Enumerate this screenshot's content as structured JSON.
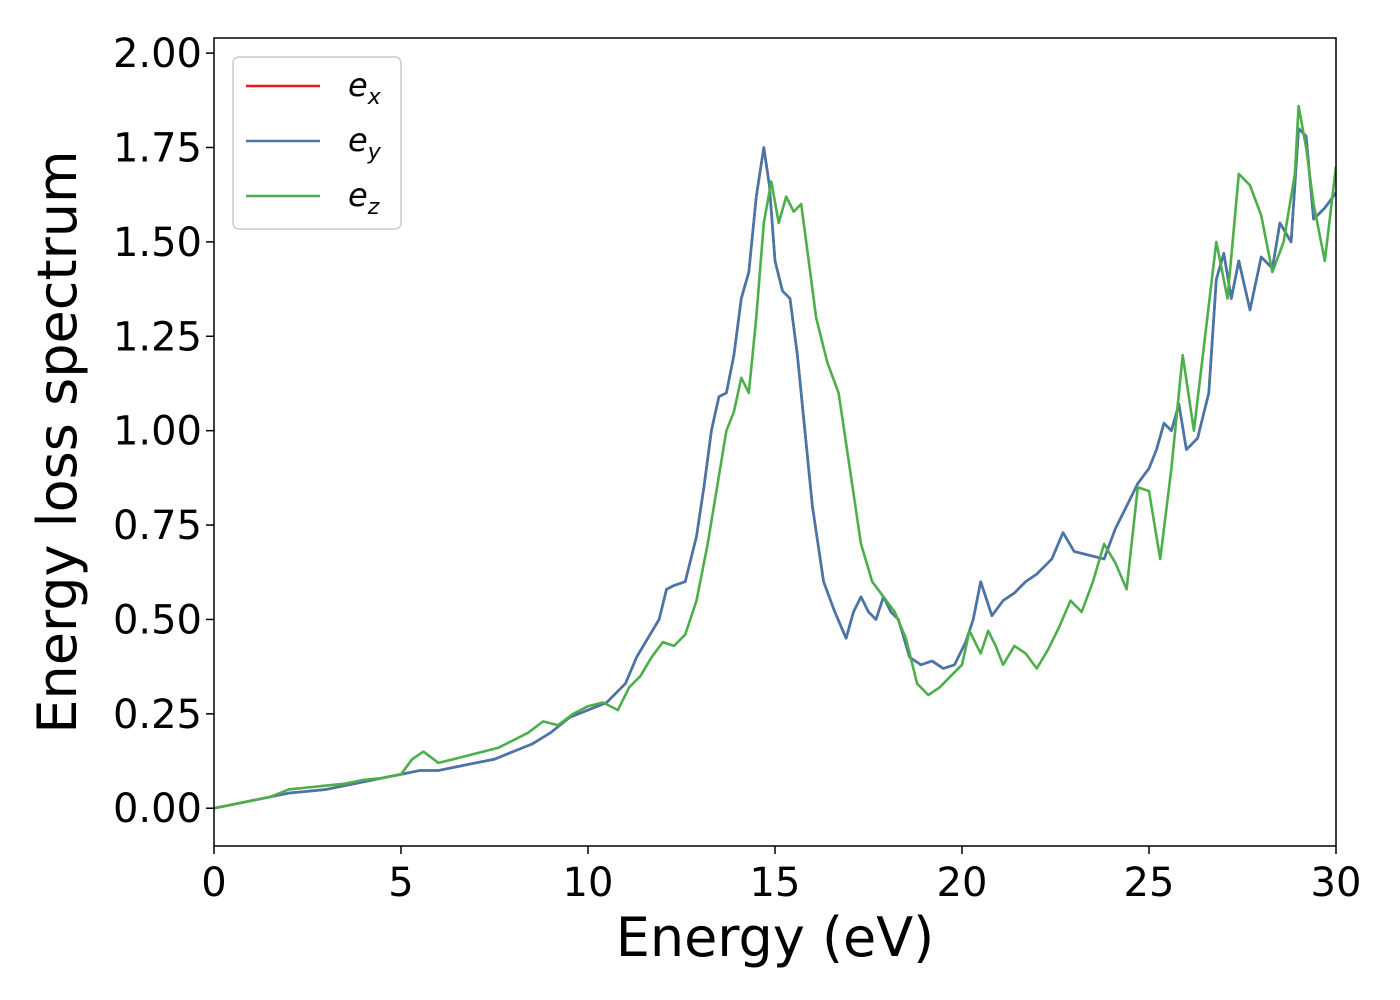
{
  "chart_data": {
    "type": "line",
    "xlabel": "Energy (eV)",
    "ylabel": "Energy loss spectrum",
    "xlim": [
      0,
      30
    ],
    "ylim": [
      -0.1,
      2.04
    ],
    "xticks": [
      "0",
      "5",
      "10",
      "15",
      "20",
      "25",
      "30"
    ],
    "yticks": [
      "0.00",
      "0.25",
      "0.50",
      "0.75",
      "1.00",
      "1.25",
      "1.50",
      "1.75",
      "2.00"
    ],
    "grid": false,
    "legend_position": "top-left",
    "series": [
      {
        "name": "e_x",
        "name_base": "e",
        "name_sub": "x",
        "color": "#e41a1c",
        "x": [
          0,
          0.5,
          1,
          1.5,
          2,
          2.5,
          3,
          3.5,
          4,
          4.5,
          5,
          5.5,
          6,
          6.5,
          7,
          7.5,
          8,
          8.5,
          9,
          9.5,
          10,
          10.5,
          11,
          11.3,
          11.6,
          11.9,
          12.1,
          12.3,
          12.6,
          12.9,
          13.1,
          13.3,
          13.5,
          13.7,
          13.9,
          14.1,
          14.3,
          14.5,
          14.7,
          14.85,
          15.0,
          15.2,
          15.4,
          15.6,
          15.8,
          16.0,
          16.3,
          16.6,
          16.9,
          17.1,
          17.3,
          17.5,
          17.7,
          17.9,
          18.1,
          18.3,
          18.6,
          18.9,
          19.2,
          19.5,
          19.8,
          20.1,
          20.3,
          20.5,
          20.8,
          21.1,
          21.4,
          21.7,
          22.0,
          22.4,
          22.7,
          23.0,
          23.4,
          23.8,
          24.1,
          24.4,
          24.7,
          25.0,
          25.2,
          25.4,
          25.6,
          25.8,
          26.0,
          26.3,
          26.6,
          26.8,
          27.0,
          27.2,
          27.4,
          27.7,
          28.0,
          28.3,
          28.5,
          28.8,
          29.0,
          29.2,
          29.4,
          29.7,
          30.0
        ],
        "values": [
          0.0,
          0.01,
          0.02,
          0.03,
          0.04,
          0.045,
          0.05,
          0.06,
          0.07,
          0.08,
          0.09,
          0.1,
          0.1,
          0.11,
          0.12,
          0.13,
          0.15,
          0.17,
          0.2,
          0.24,
          0.26,
          0.28,
          0.33,
          0.4,
          0.45,
          0.5,
          0.58,
          0.59,
          0.6,
          0.72,
          0.85,
          1.0,
          1.09,
          1.1,
          1.2,
          1.35,
          1.42,
          1.62,
          1.75,
          1.65,
          1.45,
          1.37,
          1.35,
          1.2,
          1.0,
          0.8,
          0.6,
          0.52,
          0.45,
          0.52,
          0.56,
          0.52,
          0.5,
          0.56,
          0.52,
          0.5,
          0.4,
          0.38,
          0.39,
          0.37,
          0.38,
          0.44,
          0.5,
          0.6,
          0.51,
          0.55,
          0.57,
          0.6,
          0.62,
          0.66,
          0.73,
          0.68,
          0.67,
          0.66,
          0.74,
          0.8,
          0.86,
          0.9,
          0.95,
          1.02,
          1.0,
          1.07,
          0.95,
          0.98,
          1.1,
          1.4,
          1.47,
          1.35,
          1.45,
          1.32,
          1.46,
          1.43,
          1.55,
          1.5,
          1.8,
          1.78,
          1.56,
          1.59,
          1.63
        ]
      },
      {
        "name": "e_y",
        "name_base": "e",
        "name_sub": "y",
        "color": "#4477aa",
        "x": [
          0,
          0.5,
          1,
          1.5,
          2,
          2.5,
          3,
          3.5,
          4,
          4.5,
          5,
          5.5,
          6,
          6.5,
          7,
          7.5,
          8,
          8.5,
          9,
          9.5,
          10,
          10.5,
          11,
          11.3,
          11.6,
          11.9,
          12.1,
          12.3,
          12.6,
          12.9,
          13.1,
          13.3,
          13.5,
          13.7,
          13.9,
          14.1,
          14.3,
          14.5,
          14.7,
          14.85,
          15.0,
          15.2,
          15.4,
          15.6,
          15.8,
          16.0,
          16.3,
          16.6,
          16.9,
          17.1,
          17.3,
          17.5,
          17.7,
          17.9,
          18.1,
          18.3,
          18.6,
          18.9,
          19.2,
          19.5,
          19.8,
          20.1,
          20.3,
          20.5,
          20.8,
          21.1,
          21.4,
          21.7,
          22.0,
          22.4,
          22.7,
          23.0,
          23.4,
          23.8,
          24.1,
          24.4,
          24.7,
          25.0,
          25.2,
          25.4,
          25.6,
          25.8,
          26.0,
          26.3,
          26.6,
          26.8,
          27.0,
          27.2,
          27.4,
          27.7,
          28.0,
          28.3,
          28.5,
          28.8,
          29.0,
          29.2,
          29.4,
          29.7,
          30.0
        ],
        "values": [
          0.0,
          0.01,
          0.02,
          0.03,
          0.04,
          0.045,
          0.05,
          0.06,
          0.07,
          0.08,
          0.09,
          0.1,
          0.1,
          0.11,
          0.12,
          0.13,
          0.15,
          0.17,
          0.2,
          0.24,
          0.26,
          0.28,
          0.33,
          0.4,
          0.45,
          0.5,
          0.58,
          0.59,
          0.6,
          0.72,
          0.85,
          1.0,
          1.09,
          1.1,
          1.2,
          1.35,
          1.42,
          1.62,
          1.75,
          1.65,
          1.45,
          1.37,
          1.35,
          1.2,
          1.0,
          0.8,
          0.6,
          0.52,
          0.45,
          0.52,
          0.56,
          0.52,
          0.5,
          0.56,
          0.52,
          0.5,
          0.4,
          0.38,
          0.39,
          0.37,
          0.38,
          0.44,
          0.5,
          0.6,
          0.51,
          0.55,
          0.57,
          0.6,
          0.62,
          0.66,
          0.73,
          0.68,
          0.67,
          0.66,
          0.74,
          0.8,
          0.86,
          0.9,
          0.95,
          1.02,
          1.0,
          1.07,
          0.95,
          0.98,
          1.1,
          1.4,
          1.47,
          1.35,
          1.45,
          1.32,
          1.46,
          1.43,
          1.55,
          1.5,
          1.8,
          1.78,
          1.56,
          1.59,
          1.63
        ]
      },
      {
        "name": "e_z",
        "name_base": "e",
        "name_sub": "z",
        "color": "#4daf4a",
        "x": [
          0,
          0.5,
          1,
          1.5,
          2,
          2.5,
          3,
          3.5,
          4,
          4.5,
          5,
          5.3,
          5.6,
          6.0,
          6.4,
          6.8,
          7.2,
          7.6,
          8.0,
          8.4,
          8.8,
          9.2,
          9.6,
          10.0,
          10.4,
          10.8,
          11.1,
          11.4,
          11.7,
          12.0,
          12.3,
          12.6,
          12.9,
          13.2,
          13.5,
          13.7,
          13.9,
          14.1,
          14.3,
          14.5,
          14.7,
          14.9,
          15.1,
          15.3,
          15.5,
          15.7,
          15.9,
          16.1,
          16.4,
          16.7,
          17.0,
          17.3,
          17.6,
          17.9,
          18.2,
          18.5,
          18.8,
          19.1,
          19.4,
          19.7,
          20.0,
          20.2,
          20.5,
          20.7,
          20.9,
          21.1,
          21.4,
          21.7,
          22.0,
          22.3,
          22.6,
          22.9,
          23.2,
          23.5,
          23.8,
          24.1,
          24.4,
          24.7,
          25.0,
          25.3,
          25.6,
          25.9,
          26.2,
          26.5,
          26.8,
          27.1,
          27.4,
          27.7,
          28.0,
          28.3,
          28.6,
          28.9,
          29.0,
          29.2,
          29.4,
          29.7,
          30.0
        ],
        "values": [
          0.0,
          0.01,
          0.02,
          0.03,
          0.05,
          0.055,
          0.06,
          0.065,
          0.075,
          0.08,
          0.09,
          0.13,
          0.15,
          0.12,
          0.13,
          0.14,
          0.15,
          0.16,
          0.18,
          0.2,
          0.23,
          0.22,
          0.25,
          0.27,
          0.28,
          0.26,
          0.32,
          0.35,
          0.4,
          0.44,
          0.43,
          0.46,
          0.55,
          0.7,
          0.88,
          1.0,
          1.05,
          1.14,
          1.1,
          1.3,
          1.55,
          1.66,
          1.55,
          1.62,
          1.58,
          1.6,
          1.45,
          1.3,
          1.18,
          1.1,
          0.9,
          0.7,
          0.6,
          0.56,
          0.52,
          0.45,
          0.33,
          0.3,
          0.32,
          0.35,
          0.38,
          0.47,
          0.41,
          0.47,
          0.43,
          0.38,
          0.43,
          0.41,
          0.37,
          0.42,
          0.48,
          0.55,
          0.52,
          0.6,
          0.7,
          0.65,
          0.58,
          0.85,
          0.84,
          0.66,
          0.9,
          1.2,
          1.0,
          1.25,
          1.5,
          1.35,
          1.68,
          1.65,
          1.57,
          1.42,
          1.5,
          1.68,
          1.86,
          1.75,
          1.6,
          1.45,
          1.7
        ]
      }
    ]
  }
}
